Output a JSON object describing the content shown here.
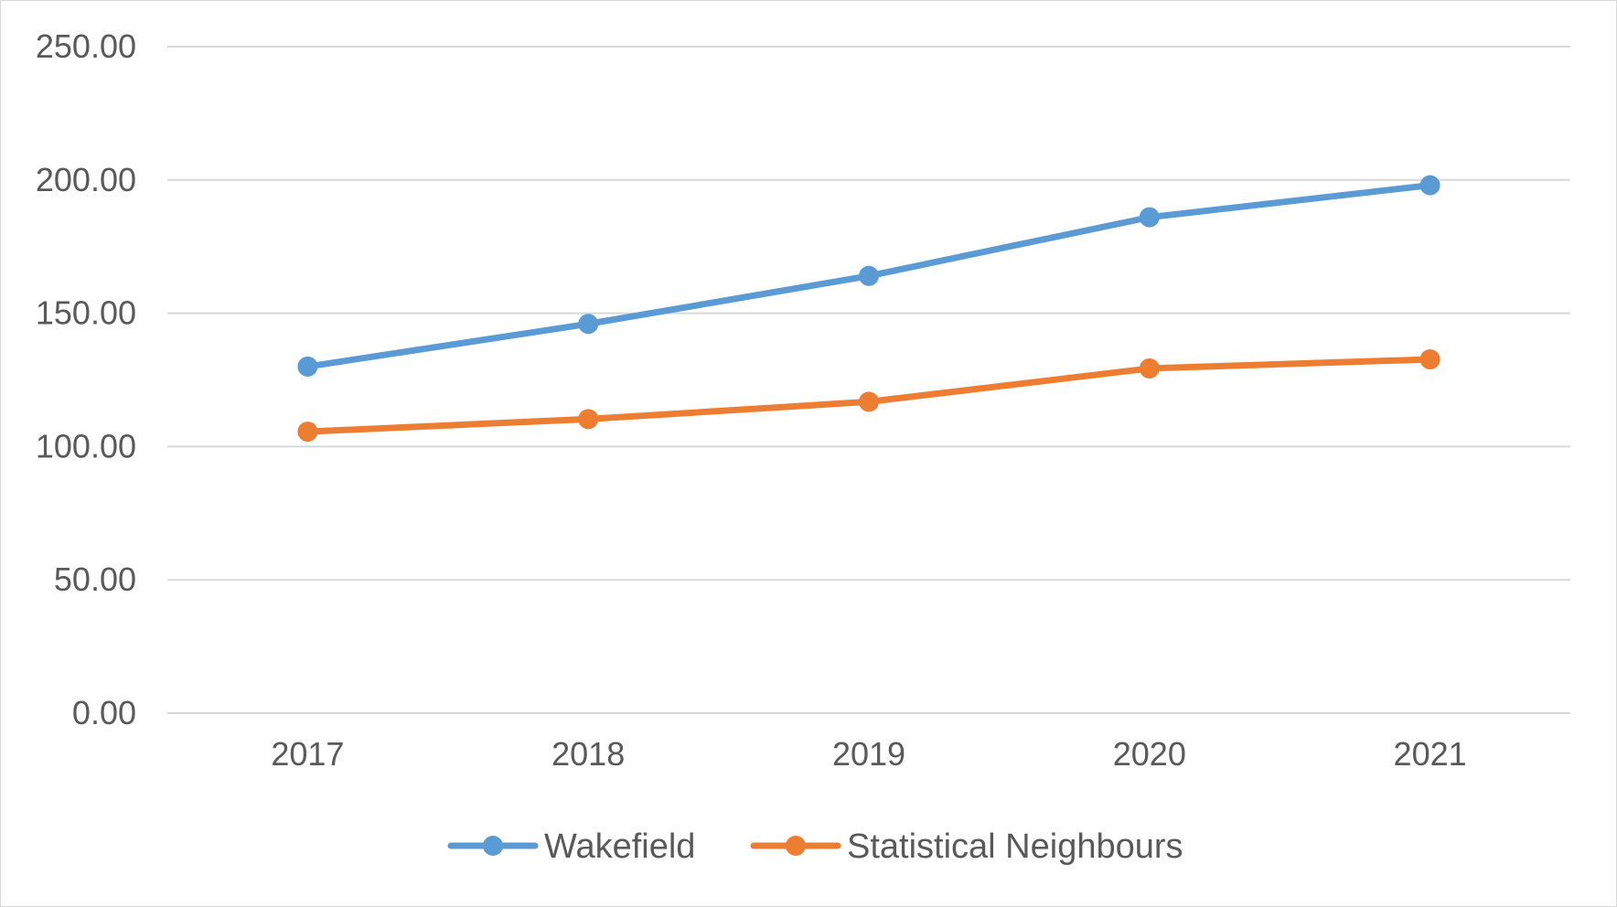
{
  "chart_data": {
    "type": "line",
    "title": "",
    "xlabel": "",
    "ylabel": "",
    "categories": [
      "2017",
      "2018",
      "2019",
      "2020",
      "2021"
    ],
    "y_ticks": [
      0,
      50,
      100,
      150,
      200,
      250
    ],
    "y_tick_labels": [
      "0.00",
      "50.00",
      "100.00",
      "150.00",
      "200.00",
      "250.00"
    ],
    "ylim": [
      0,
      250
    ],
    "grid": true,
    "legend_position": "bottom",
    "series": [
      {
        "name": "Wakefield",
        "color": "#5b9bd5",
        "values": [
          130.0,
          146.0,
          164.0,
          186.0,
          198.0
        ]
      },
      {
        "name": "Statistical Neighbours",
        "color": "#ed7d31",
        "values": [
          105.6,
          110.3,
          116.8,
          129.3,
          132.7
        ]
      }
    ]
  }
}
